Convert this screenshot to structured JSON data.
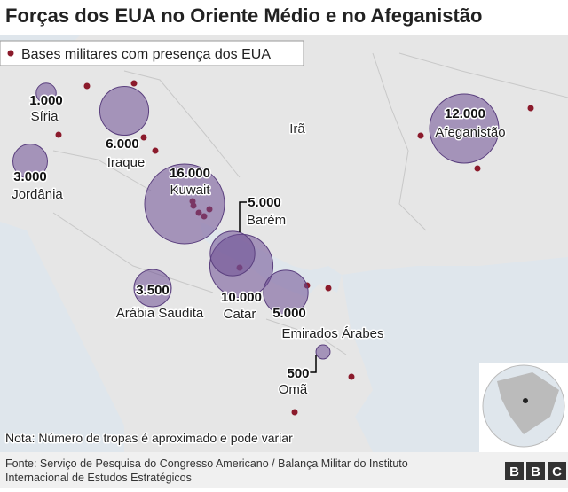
{
  "title": "Forças dos EUA no Oriente Médio e no Afeganistão",
  "legend": "Bases militares com presença dos EUA",
  "bubbles": [
    {
      "value": 1000,
      "value_label": "1.000",
      "country": "Síria"
    },
    {
      "value": 6000,
      "value_label": "6.000",
      "country": "Iraque"
    },
    {
      "value": 3000,
      "value_label": "3.000",
      "country": "Jordânia"
    },
    {
      "value": 16000,
      "value_label": "16.000",
      "country": "Kuwait"
    },
    {
      "value": 10000,
      "value_label": "10.000",
      "country": "Catar"
    },
    {
      "value": 5000,
      "value_label": "5.000",
      "country": "Barém"
    },
    {
      "value": 5000,
      "value_label": "5.000",
      "country": "Emirados Árabes"
    },
    {
      "value": 3500,
      "value_label": "3.500",
      "country": "Arábia Saudita"
    },
    {
      "value": 500,
      "value_label": "500",
      "country": "Omã"
    },
    {
      "value": 12000,
      "value_label": "12.000",
      "country": "Afeganistão"
    }
  ],
  "other_countries": [
    "Irã"
  ],
  "note": "Nota: Número de tropas é aproximado e pode variar",
  "source_lines": [
    "Fonte: Serviço de Pesquisa do Congresso Americano / Balança Militar do Instituto",
    "Internacional de Estudos Estratégicos"
  ],
  "logo": [
    "B",
    "B",
    "C"
  ]
}
